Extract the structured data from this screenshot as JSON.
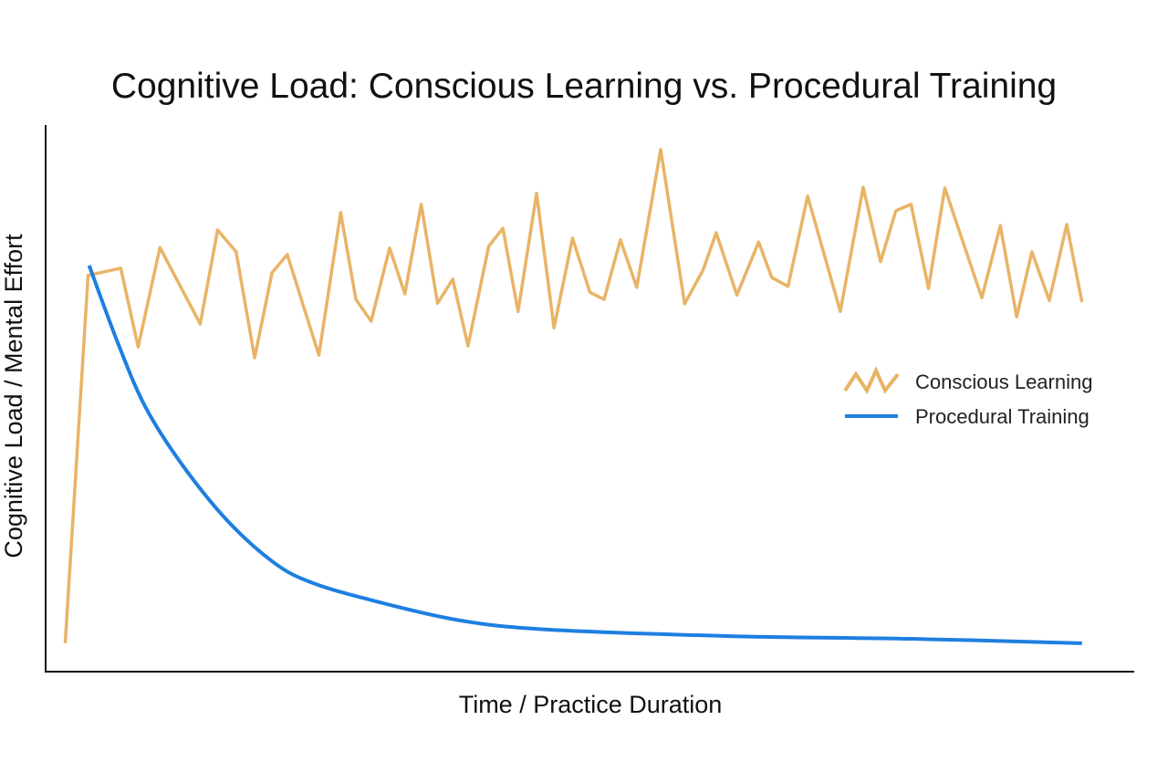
{
  "chart_data": {
    "type": "line",
    "title": "Cognitive Load: Conscious Learning vs. Procedural Training",
    "xlabel": "Time / Practice Duration",
    "ylabel": "Cognitive Load / Mental Effort",
    "xlim": [
      0,
      100
    ],
    "ylim": [
      0,
      100
    ],
    "grid": false,
    "legend_position": "right",
    "series": [
      {
        "name": "Conscious Learning",
        "color": "#E8B467",
        "x": [
          1.8,
          3.9,
          6.9,
          8.5,
          10.5,
          14.2,
          15.8,
          17.5,
          19.2,
          20.8,
          22.2,
          25.1,
          27.1,
          28.5,
          29.9,
          31.6,
          33.0,
          34.5,
          36.0,
          37.4,
          38.8,
          40.7,
          42.0,
          43.4,
          45.1,
          46.7,
          48.4,
          50.0,
          51.3,
          52.8,
          54.3,
          56.5,
          58.7,
          60.4,
          61.6,
          63.5,
          65.5,
          66.7,
          68.2,
          70.0,
          73.0,
          75.1,
          76.7,
          78.1,
          79.5,
          81.1,
          82.6,
          84.4,
          86.0,
          87.7,
          89.2,
          90.6,
          92.2,
          93.8,
          95.2
        ],
        "y": [
          5.2,
          72.5,
          73.8,
          59.4,
          77.6,
          63.6,
          80.8,
          76.8,
          57.4,
          73.0,
          76.3,
          57.9,
          84.0,
          68.1,
          64.1,
          77.5,
          69.1,
          85.5,
          67.4,
          71.8,
          59.6,
          77.8,
          81.1,
          65.9,
          87.5,
          62.9,
          79.3,
          69.4,
          68.1,
          79.0,
          70.3,
          95.5,
          67.3,
          73.5,
          80.3,
          68.9,
          78.6,
          72.1,
          70.5,
          87.0,
          65.9,
          88.6,
          75.0,
          84.3,
          85.5,
          70.1,
          88.5,
          77.8,
          68.4,
          81.6,
          64.9,
          76.8,
          67.9,
          81.8,
          67.6
        ]
      },
      {
        "name": "Procedural Training",
        "color": "#1E7FE0",
        "x": [
          4.0,
          6.7,
          9.2,
          12.6,
          16.8,
          21.0,
          24.3,
          29.3,
          37.7,
          46.1,
          62.9,
          79.6,
          95.2
        ],
        "y": [
          74.3,
          59.8,
          48.3,
          37.7,
          27.4,
          19.9,
          16.4,
          13.4,
          9.5,
          7.7,
          6.5,
          6.0,
          5.2
        ]
      }
    ]
  }
}
